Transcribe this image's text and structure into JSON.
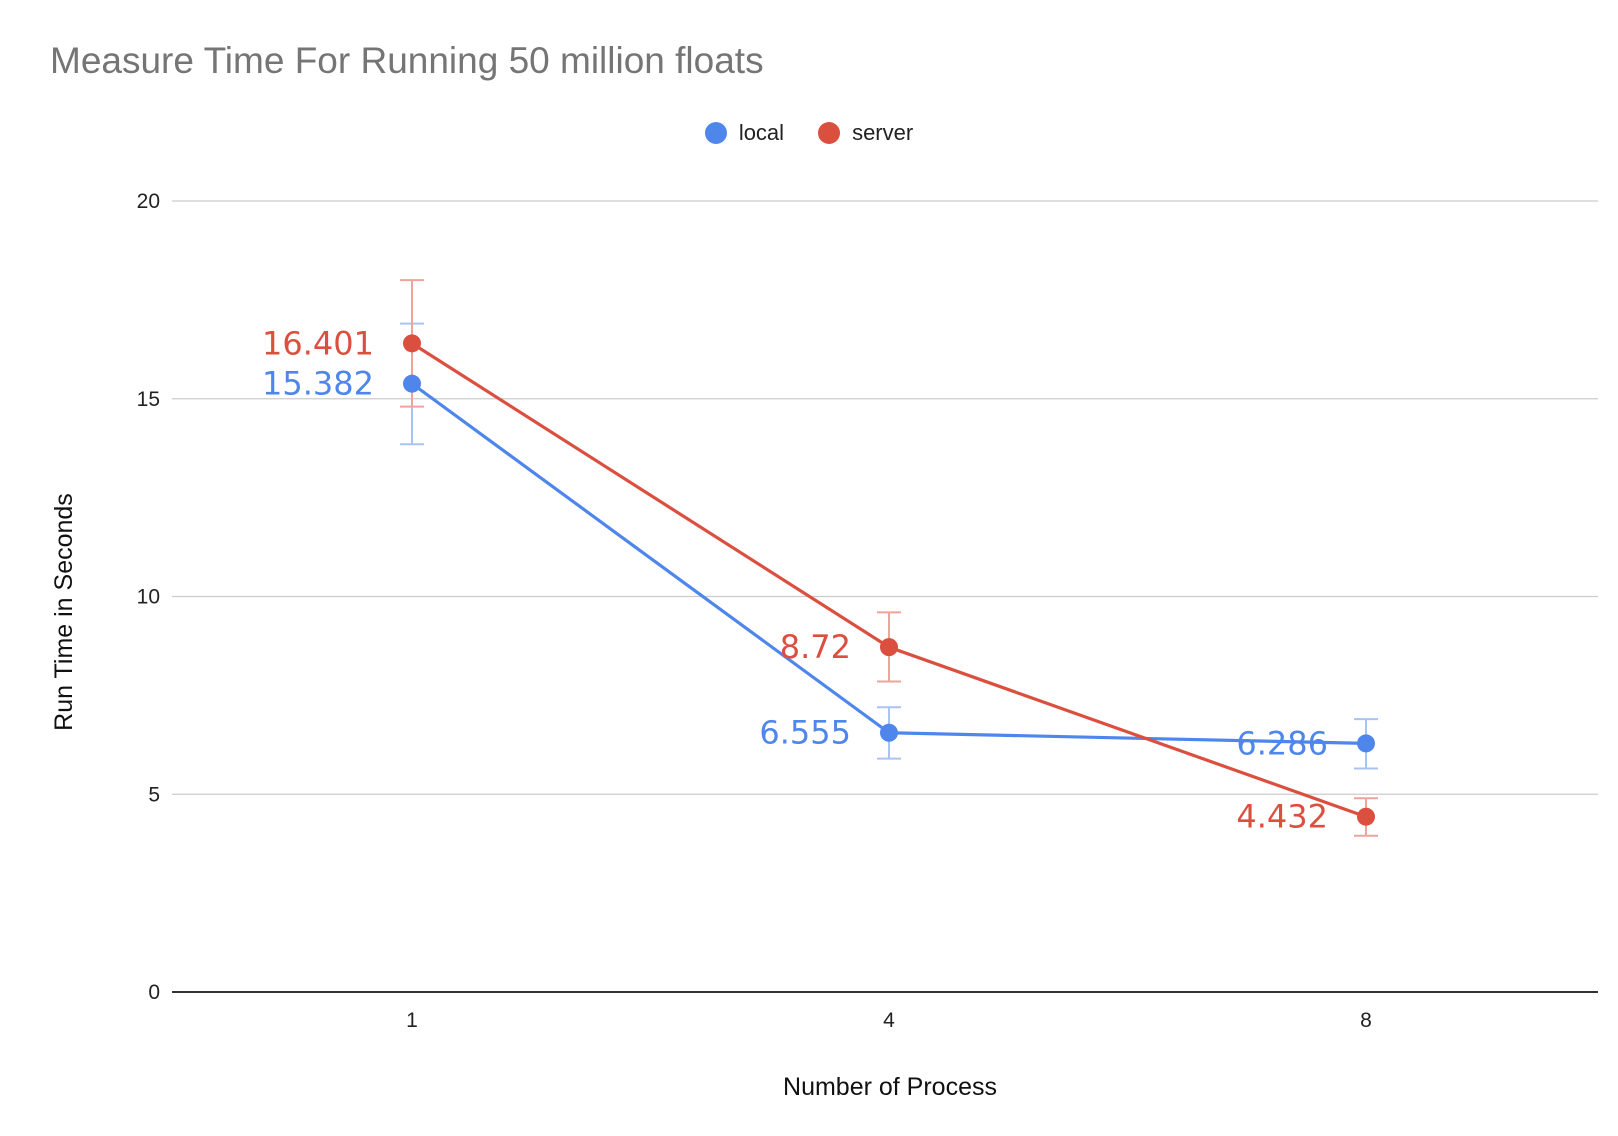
{
  "chart_data": {
    "type": "line",
    "title": "Measure Time For Running 50 million floats",
    "xlabel": "Number of Process",
    "ylabel": "Run Time in Seconds",
    "categories": [
      "1",
      "4",
      "8"
    ],
    "ylim": [
      0,
      20
    ],
    "yticks": [
      "0",
      "5",
      "10",
      "15",
      "20"
    ],
    "grid": true,
    "legend_position": "top-center",
    "series": [
      {
        "name": "local",
        "color": "#4f86ec",
        "values": [
          15.382,
          6.555,
          6.286
        ],
        "labels": [
          "15.382",
          "6.555",
          "6.286"
        ],
        "error_low": [
          13.85,
          5.9,
          5.65
        ],
        "error_high": [
          16.9,
          7.2,
          6.9
        ]
      },
      {
        "name": "server",
        "color": "#db4f3f",
        "values": [
          16.401,
          8.72,
          4.432
        ],
        "labels": [
          "16.401",
          "8.72",
          "4.432"
        ],
        "error_low": [
          14.8,
          7.85,
          3.95
        ],
        "error_high": [
          18.0,
          9.6,
          4.9
        ]
      }
    ]
  }
}
